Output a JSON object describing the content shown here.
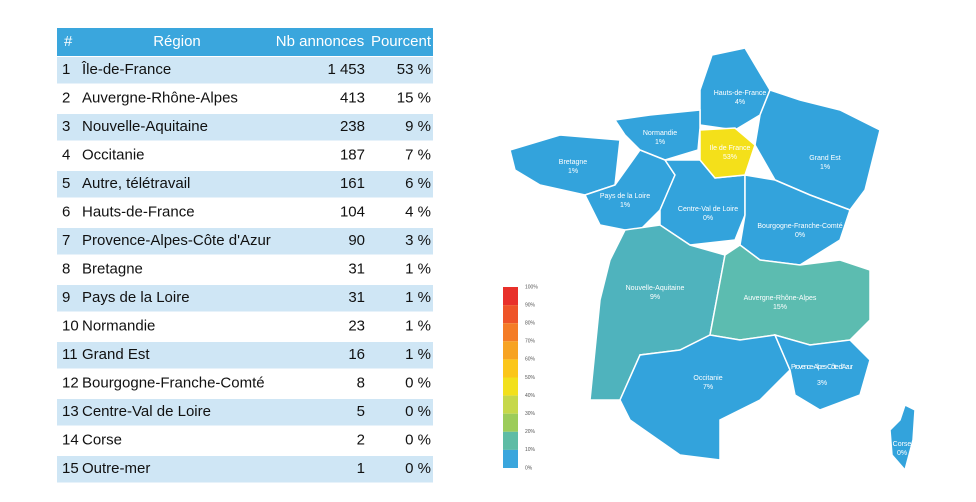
{
  "table": {
    "header": [
      "#",
      "Région",
      "Nb annonces",
      "Pourcent"
    ],
    "rows": [
      [
        "1",
        "Île-de-France",
        "1 453",
        "53 %"
      ],
      [
        "2",
        "Auvergne-Rhône-Alpes",
        "413",
        "15 %"
      ],
      [
        "3",
        "Nouvelle-Aquitaine",
        "238",
        "9 %"
      ],
      [
        "4",
        "Occitanie",
        "187",
        "7 %"
      ],
      [
        "5",
        "Autre, télétravail",
        "161",
        "6 %"
      ],
      [
        "6",
        "Hauts-de-France",
        "104",
        "4 %"
      ],
      [
        "7",
        "Provence-Alpes-Côte d'Azur",
        "90",
        "3 %"
      ],
      [
        "8",
        "Bretagne",
        "31",
        "1 %"
      ],
      [
        "9",
        "Pays de la Loire",
        "31",
        "1 %"
      ],
      [
        "10",
        "Normandie",
        "23",
        "1 %"
      ],
      [
        "11",
        "Grand Est",
        "16",
        "1 %"
      ],
      [
        "12",
        "Bourgogne-Franche-Comté",
        "8",
        "0 %"
      ],
      [
        "13",
        "Centre-Val de Loire",
        "5",
        "0 %"
      ],
      [
        "14",
        "Corse",
        "2",
        "0 %"
      ],
      [
        "15",
        "Outre-mer",
        "1",
        "0 %"
      ]
    ]
  },
  "map": {
    "regions": [
      {
        "name": "Hauts-de-France",
        "pct": "4%"
      },
      {
        "name": "Normandie",
        "pct": "1%"
      },
      {
        "name": "Ile de France",
        "pct": "53%"
      },
      {
        "name": "Grand Est",
        "pct": "1%"
      },
      {
        "name": "Bretagne",
        "pct": "1%"
      },
      {
        "name": "Pays de la Loire",
        "pct": "1%"
      },
      {
        "name": "Centre-Val de Loire",
        "pct": "0%"
      },
      {
        "name": "Bourgogne-Franche-Comté",
        "pct": "0%"
      },
      {
        "name": "Nouvelle-Aquitaine",
        "pct": "9%"
      },
      {
        "name": "Auvergne-Rhône-Alpes",
        "pct": "15%"
      },
      {
        "name": "Occitanie",
        "pct": "7%"
      },
      {
        "name": "Provence-Alpes-Côte d'Azur",
        "pct": "3%"
      },
      {
        "name": "Corse",
        "pct": "0%"
      }
    ],
    "legend": [
      "100%",
      "90%",
      "80%",
      "70%",
      "60%",
      "50%",
      "40%",
      "30%",
      "20%",
      "10%",
      "0%"
    ]
  }
}
